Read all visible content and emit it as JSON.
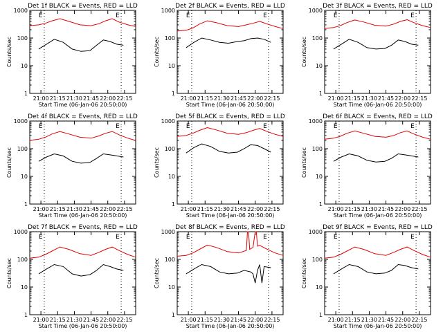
{
  "colors": {
    "events": "#000000",
    "lld": "#e00000",
    "background": "#ffffff"
  },
  "shared": {
    "xlabel": "Start Time (06-Jan-06 20:50:00)",
    "ylabel": "Counts/sec",
    "y_ticks": [
      "1",
      "10",
      "100",
      "1000"
    ],
    "x_ticks": [
      "21:00",
      "21:15",
      "21:30",
      "21:45",
      "22:00",
      "22:15"
    ],
    "marker_label": "E"
  },
  "chart_data": [
    {
      "type": "line",
      "title": "Det 1f BLACK = Events, RED = LLD",
      "x_unit": "minutes after 20:50:00",
      "xlim": [
        0,
        95
      ],
      "ylim": [
        1,
        1000
      ],
      "yscale": "log",
      "grid": false,
      "markers_x": [
        13,
        82
      ],
      "series": [
        {
          "name": "BLACK = Events",
          "color": "#000000",
          "x": [
            8,
            15,
            22,
            30,
            38,
            46,
            54,
            60,
            66,
            72,
            78,
            84
          ],
          "values": [
            40,
            60,
            90,
            70,
            40,
            33,
            35,
            55,
            85,
            75,
            60,
            55
          ]
        },
        {
          "name": "RED = LLD",
          "color": "#e00000",
          "x": [
            0,
            8,
            14,
            20,
            27,
            35,
            45,
            55,
            62,
            68,
            74,
            80,
            88,
            95
          ],
          "values": [
            280,
            300,
            340,
            420,
            500,
            400,
            300,
            280,
            330,
            420,
            500,
            380,
            300,
            260
          ]
        }
      ]
    },
    {
      "type": "line",
      "title": "Det 2f BLACK = Events, RED = LLD",
      "x_unit": "minutes after 20:50:00",
      "xlim": [
        0,
        95
      ],
      "ylim": [
        1,
        1000
      ],
      "yscale": "log",
      "grid": false,
      "markers_x": [
        13,
        82
      ],
      "series": [
        {
          "name": "BLACK = Events",
          "color": "#000000",
          "x": [
            8,
            15,
            22,
            30,
            38,
            46,
            54,
            60,
            66,
            72,
            78,
            84
          ],
          "values": [
            45,
            70,
            100,
            85,
            70,
            65,
            75,
            80,
            95,
            100,
            90,
            70
          ]
        },
        {
          "name": "RED = LLD",
          "color": "#e00000",
          "x": [
            0,
            8,
            14,
            20,
            27,
            35,
            45,
            55,
            62,
            68,
            74,
            80,
            88,
            95
          ],
          "values": [
            180,
            190,
            230,
            320,
            420,
            360,
            280,
            260,
            300,
            340,
            400,
            330,
            260,
            220
          ]
        }
      ]
    },
    {
      "type": "line",
      "title": "Det 3f BLACK = Events, RED = LLD",
      "x_unit": "minutes after 20:50:00",
      "xlim": [
        0,
        95
      ],
      "ylim": [
        1,
        1000
      ],
      "yscale": "log",
      "grid": false,
      "markers_x": [
        13,
        82
      ],
      "series": [
        {
          "name": "BLACK = Events",
          "color": "#000000",
          "x": [
            8,
            15,
            22,
            30,
            38,
            46,
            54,
            60,
            66,
            72,
            78,
            84
          ],
          "values": [
            40,
            60,
            90,
            70,
            45,
            40,
            42,
            55,
            85,
            75,
            60,
            55
          ]
        },
        {
          "name": "RED = LLD",
          "color": "#e00000",
          "x": [
            0,
            8,
            14,
            20,
            27,
            35,
            45,
            55,
            62,
            68,
            74,
            80,
            88,
            95
          ],
          "values": [
            220,
            240,
            280,
            360,
            450,
            380,
            290,
            270,
            320,
            400,
            460,
            360,
            280,
            240
          ]
        }
      ]
    },
    {
      "type": "line",
      "title": "Det 4f BLACK = Events, RED = LLD",
      "x_unit": "minutes after 20:50:00",
      "xlim": [
        0,
        95
      ],
      "ylim": [
        1,
        1000
      ],
      "yscale": "log",
      "grid": false,
      "markers_x": [
        13,
        82
      ],
      "series": [
        {
          "name": "BLACK = Events",
          "color": "#000000",
          "x": [
            8,
            15,
            22,
            30,
            38,
            46,
            54,
            60,
            66,
            72,
            78,
            84
          ],
          "values": [
            35,
            50,
            65,
            55,
            35,
            30,
            32,
            45,
            65,
            60,
            55,
            50
          ]
        },
        {
          "name": "RED = LLD",
          "color": "#e00000",
          "x": [
            0,
            8,
            14,
            20,
            27,
            35,
            45,
            55,
            62,
            68,
            74,
            80,
            88,
            95
          ],
          "values": [
            200,
            220,
            260,
            340,
            420,
            340,
            260,
            240,
            290,
            360,
            420,
            320,
            240,
            200
          ]
        }
      ]
    },
    {
      "type": "line",
      "title": "Det 5f BLACK = Events, RED = LLD",
      "x_unit": "minutes after 20:50:00",
      "xlim": [
        0,
        95
      ],
      "ylim": [
        1,
        1000
      ],
      "yscale": "log",
      "grid": false,
      "markers_x": [
        13,
        82
      ],
      "series": [
        {
          "name": "BLACK = Events",
          "color": "#000000",
          "x": [
            8,
            15,
            22,
            30,
            38,
            46,
            54,
            60,
            66,
            72,
            78,
            84
          ],
          "values": [
            70,
            110,
            150,
            120,
            80,
            70,
            75,
            100,
            140,
            130,
            100,
            75
          ]
        },
        {
          "name": "RED = LLD",
          "color": "#e00000",
          "x": [
            0,
            8,
            14,
            20,
            27,
            35,
            45,
            55,
            62,
            68,
            74,
            80,
            88,
            95
          ],
          "values": [
            280,
            300,
            360,
            460,
            580,
            480,
            360,
            330,
            380,
            460,
            540,
            430,
            330,
            280
          ]
        }
      ]
    },
    {
      "type": "line",
      "title": "Det 6f BLACK = Events, RED = LLD",
      "x_unit": "minutes after 20:50:00",
      "xlim": [
        0,
        95
      ],
      "ylim": [
        1,
        1000
      ],
      "yscale": "log",
      "grid": false,
      "markers_x": [
        13,
        82
      ],
      "series": [
        {
          "name": "BLACK = Events",
          "color": "#000000",
          "x": [
            8,
            15,
            22,
            30,
            38,
            46,
            54,
            60,
            66,
            72,
            78,
            84
          ],
          "values": [
            35,
            50,
            65,
            55,
            38,
            33,
            35,
            45,
            65,
            60,
            55,
            50
          ]
        },
        {
          "name": "RED = LLD",
          "color": "#e00000",
          "x": [
            0,
            8,
            14,
            20,
            27,
            35,
            45,
            55,
            62,
            68,
            74,
            80,
            88,
            95
          ],
          "values": [
            220,
            240,
            280,
            360,
            440,
            360,
            280,
            260,
            300,
            380,
            440,
            340,
            260,
            220
          ]
        }
      ]
    },
    {
      "type": "line",
      "title": "Det 7f BLACK = Events, RED = LLD",
      "x_unit": "minutes after 20:50:00",
      "xlim": [
        0,
        95
      ],
      "ylim": [
        1,
        1000
      ],
      "yscale": "log",
      "grid": false,
      "markers_x": [
        13,
        82
      ],
      "series": [
        {
          "name": "BLACK = Events",
          "color": "#000000",
          "x": [
            8,
            15,
            22,
            30,
            38,
            46,
            54,
            60,
            66,
            72,
            78,
            84
          ],
          "values": [
            30,
            45,
            65,
            55,
            30,
            25,
            28,
            40,
            65,
            55,
            45,
            40
          ]
        },
        {
          "name": "RED = LLD",
          "color": "#e00000",
          "x": [
            0,
            8,
            14,
            20,
            27,
            35,
            45,
            55,
            62,
            68,
            74,
            80,
            88,
            95
          ],
          "values": [
            110,
            120,
            150,
            200,
            280,
            230,
            160,
            140,
            180,
            230,
            280,
            210,
            150,
            120
          ]
        }
      ]
    },
    {
      "type": "line",
      "title": "Det 8f BLACK = Events, RED = LLD",
      "x_unit": "minutes after 20:50:00",
      "xlim": [
        0,
        95
      ],
      "ylim": [
        1,
        1000
      ],
      "yscale": "log",
      "grid": false,
      "markers_x": [
        13,
        82
      ],
      "series": [
        {
          "name": "BLACK = Events",
          "color": "#000000",
          "x": [
            8,
            15,
            22,
            30,
            38,
            46,
            54,
            60,
            66,
            68,
            70,
            72,
            74,
            76,
            78,
            84
          ],
          "values": [
            30,
            45,
            65,
            55,
            35,
            30,
            32,
            40,
            35,
            30,
            14,
            40,
            65,
            14,
            55,
            50
          ]
        },
        {
          "name": "RED = LLD",
          "color": "#e00000",
          "x": [
            0,
            8,
            14,
            20,
            27,
            35,
            45,
            55,
            62,
            63,
            64,
            65,
            68,
            70,
            71,
            72,
            74,
            80,
            88,
            95
          ],
          "values": [
            130,
            140,
            170,
            230,
            330,
            270,
            190,
            170,
            210,
            1000,
            1000,
            230,
            270,
            1000,
            1000,
            300,
            320,
            240,
            170,
            140
          ]
        }
      ]
    },
    {
      "type": "line",
      "title": "Det 9f BLACK = Events, RED = LLD",
      "x_unit": "minutes after 20:50:00",
      "xlim": [
        0,
        95
      ],
      "ylim": [
        1,
        1000
      ],
      "yscale": "log",
      "grid": false,
      "markers_x": [
        13,
        82
      ],
      "series": [
        {
          "name": "BLACK = Events",
          "color": "#000000",
          "x": [
            8,
            15,
            22,
            30,
            38,
            46,
            54,
            60,
            66,
            72,
            78,
            84
          ],
          "values": [
            30,
            45,
            65,
            55,
            35,
            30,
            32,
            40,
            65,
            60,
            50,
            45
          ]
        },
        {
          "name": "RED = LLD",
          "color": "#e00000",
          "x": [
            0,
            8,
            14,
            20,
            27,
            35,
            45,
            55,
            62,
            68,
            74,
            80,
            88,
            95
          ],
          "values": [
            110,
            120,
            150,
            200,
            280,
            230,
            160,
            140,
            180,
            230,
            280,
            210,
            150,
            120
          ]
        }
      ]
    }
  ]
}
